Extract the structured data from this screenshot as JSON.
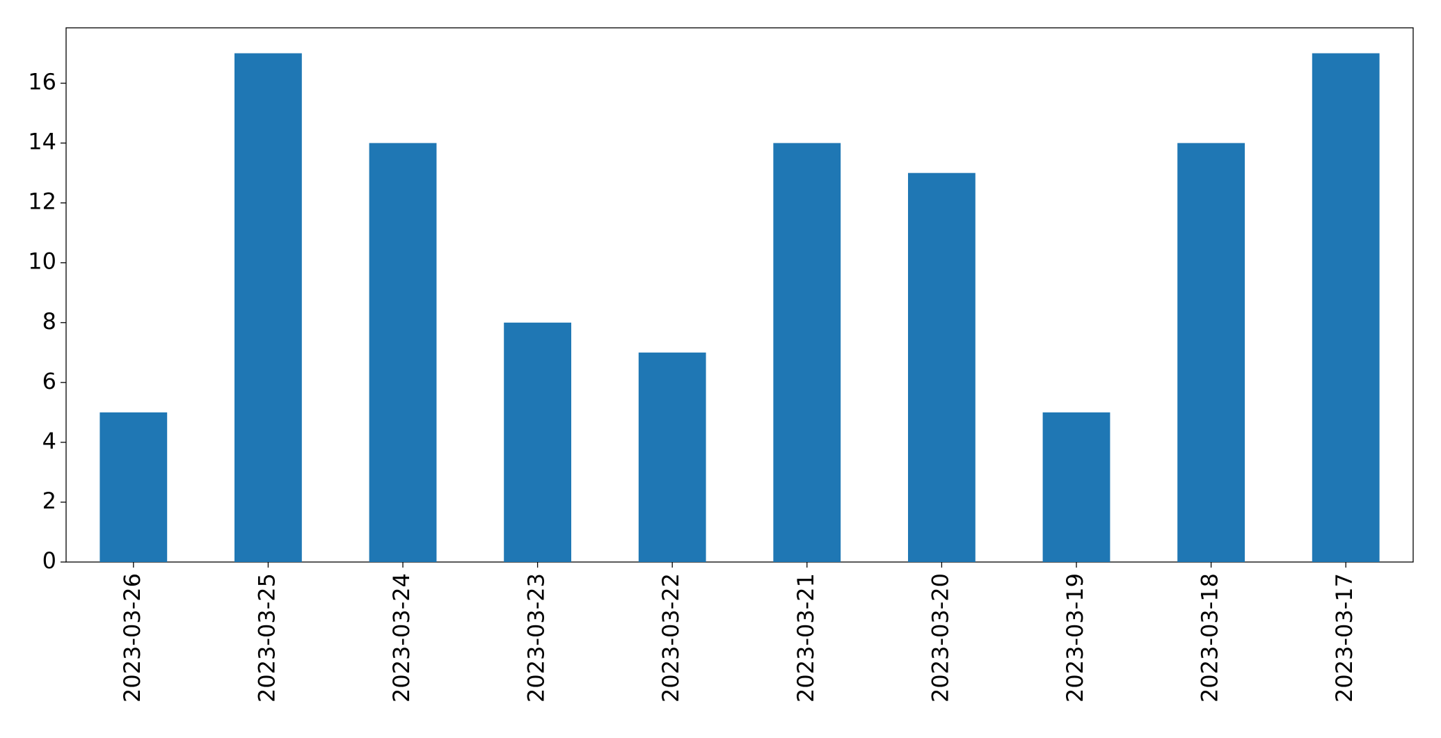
{
  "chart_data": {
    "type": "bar",
    "categories": [
      "2023-03-26",
      "2023-03-25",
      "2023-03-24",
      "2023-03-23",
      "2023-03-22",
      "2023-03-21",
      "2023-03-20",
      "2023-03-19",
      "2023-03-18",
      "2023-03-17"
    ],
    "values": [
      5,
      17,
      14,
      8,
      7,
      14,
      13,
      5,
      14,
      17
    ],
    "color": "#1f77b4",
    "ylim": [
      0,
      17.85
    ],
    "yticks": [
      0,
      2,
      4,
      6,
      8,
      10,
      12,
      14,
      16
    ],
    "grid": false
  }
}
